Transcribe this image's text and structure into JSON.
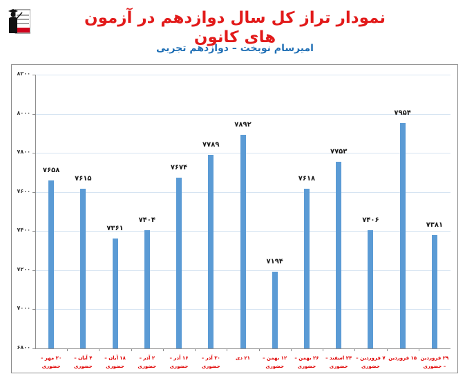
{
  "header": {
    "title": "نمودار تراز کل سال دوازدهم در آزمون های کانون",
    "subtitle": "امیرسام نوبخت – دوازدهم تجربی",
    "logo_icon": "graduate-logo-icon"
  },
  "colors": {
    "bar": "#5b9bd5",
    "title": "#e21a1a",
    "subtitle": "#1f6fb5",
    "xlabel": "#e00000",
    "grid": "#d6e4f2",
    "axis": "#8c8c8c"
  },
  "chart_data": {
    "type": "bar",
    "title": "نمودار تراز کل سال دوازدهم در آزمون های کانون",
    "subtitle": "امیرسام نوبخت – دوازدهم تجربی",
    "xlabel": "",
    "ylabel": "",
    "ylim": [
      6800,
      8200
    ],
    "yticks": [
      6800,
      7000,
      7200,
      7400,
      7600,
      7800,
      8000,
      8200
    ],
    "ytick_labels": [
      "۶۸۰۰",
      "۷۰۰۰",
      "۷۲۰۰",
      "۷۴۰۰",
      "۷۶۰۰",
      "۷۸۰۰",
      "۸۰۰۰",
      "۸۲۰۰"
    ],
    "grid": true,
    "legend": null,
    "categories": [
      "۲۰ مهر – حضوری",
      "۴ آبان – حضوری",
      "۱۸ آبان – حضوری",
      "۲ آذر – حضوری",
      "۱۶ آذر – حضوری",
      "۳۰ آذر – حضوری",
      "۲۱ دی",
      "۱۲ بهمن – حضوری",
      "۲۶ بهمن – حضوری",
      "۲۴ اسفند – حضوری",
      "۷ فروردین – حضوری",
      "۱۵ فروردین",
      "۲۹ فروردین – حضوری"
    ],
    "values": [
      7658,
      7615,
      7361,
      7404,
      7674,
      7789,
      7892,
      7194,
      7618,
      7753,
      7406,
      7954,
      7381
    ],
    "value_labels": [
      "۷۶۵۸",
      "۷۶۱۵",
      "۷۳۶۱",
      "۷۴۰۴",
      "۷۶۷۴",
      "۷۷۸۹",
      "۷۸۹۲",
      "۷۱۹۴",
      "۷۶۱۸",
      "۷۷۵۳",
      "۷۴۰۶",
      "۷۹۵۴",
      "۷۳۸۱"
    ]
  }
}
